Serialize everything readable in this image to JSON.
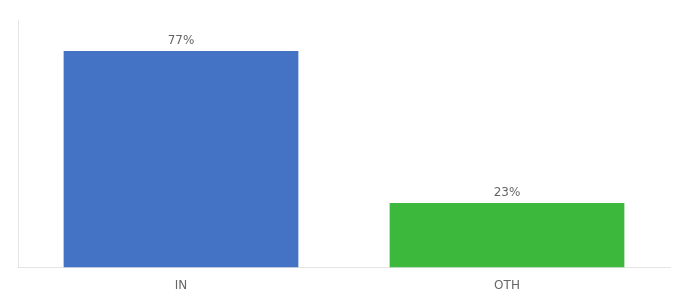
{
  "chart_data": {
    "type": "bar",
    "categories": [
      "IN",
      "OTH"
    ],
    "values": [
      77,
      23
    ],
    "value_labels": [
      "77%",
      "23%"
    ],
    "colors": [
      "#4472c4",
      "#3cb83c"
    ],
    "ylim": [
      0,
      88
    ],
    "data_labels": true,
    "tick_labels": "x",
    "grid": false
  }
}
